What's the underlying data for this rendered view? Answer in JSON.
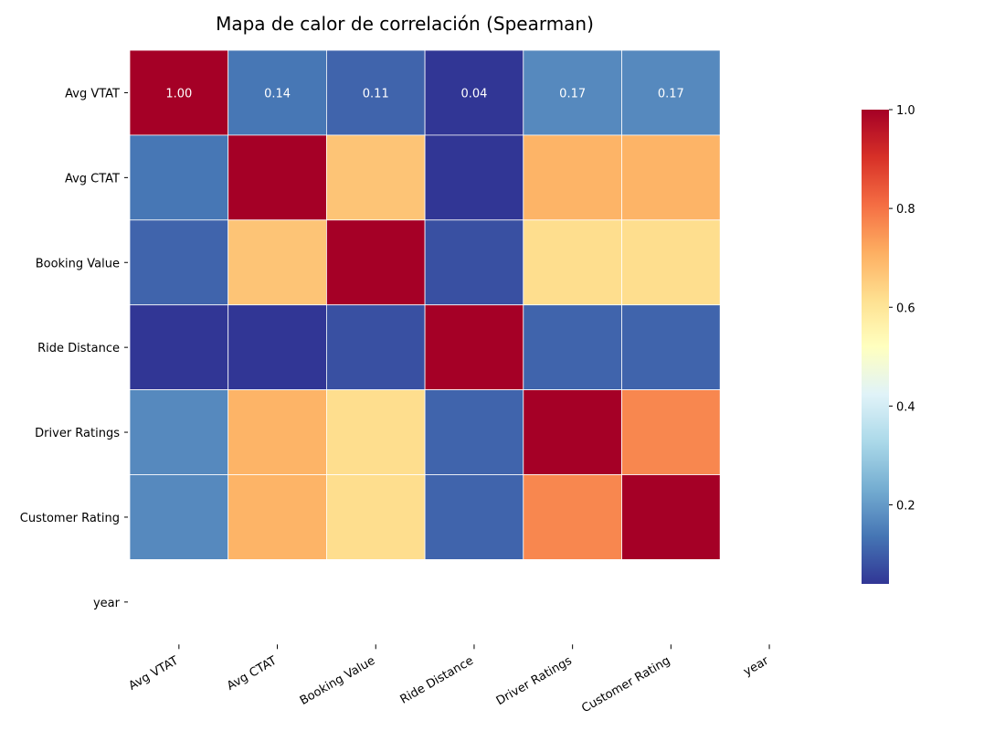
{
  "chart_data": {
    "type": "heatmap",
    "title": "Mapa de calor de correlación (Spearman)",
    "row_labels": [
      "Avg VTAT",
      "Avg CTAT",
      "Booking Value",
      "Ride Distance",
      "Driver Ratings",
      "Customer Rating",
      "year"
    ],
    "col_labels": [
      "Avg VTAT",
      "Avg CTAT",
      "Booking Value",
      "Ride Distance",
      "Driver Ratings",
      "Customer Rating",
      "year"
    ],
    "values": [
      [
        1.0,
        0.14,
        0.11,
        0.04,
        0.17,
        0.17,
        null
      ],
      [
        0.14,
        1.0,
        0.67,
        0.04,
        0.7,
        0.7,
        null
      ],
      [
        0.11,
        0.67,
        1.0,
        0.08,
        0.62,
        0.62,
        null
      ],
      [
        0.04,
        0.04,
        0.08,
        1.0,
        0.11,
        0.11,
        null
      ],
      [
        0.17,
        0.7,
        0.62,
        0.11,
        1.0,
        0.77,
        null
      ],
      [
        0.17,
        0.7,
        0.62,
        0.11,
        0.77,
        1.0,
        null
      ],
      [
        null,
        null,
        null,
        null,
        null,
        null,
        null
      ]
    ],
    "annotations": [
      {
        "row": 0,
        "col": 0,
        "text": "1.00"
      },
      {
        "row": 0,
        "col": 1,
        "text": "0.14"
      },
      {
        "row": 0,
        "col": 2,
        "text": "0.11"
      },
      {
        "row": 0,
        "col": 3,
        "text": "0.04"
      },
      {
        "row": 0,
        "col": 4,
        "text": "0.17"
      },
      {
        "row": 0,
        "col": 5,
        "text": "0.17"
      }
    ],
    "colormap": "RdYlBu_r",
    "vmin": 0.04,
    "vmax": 1.0,
    "colorbar_ticks": [
      "0.2",
      "0.4",
      "0.6",
      "0.8",
      "1.0"
    ]
  }
}
